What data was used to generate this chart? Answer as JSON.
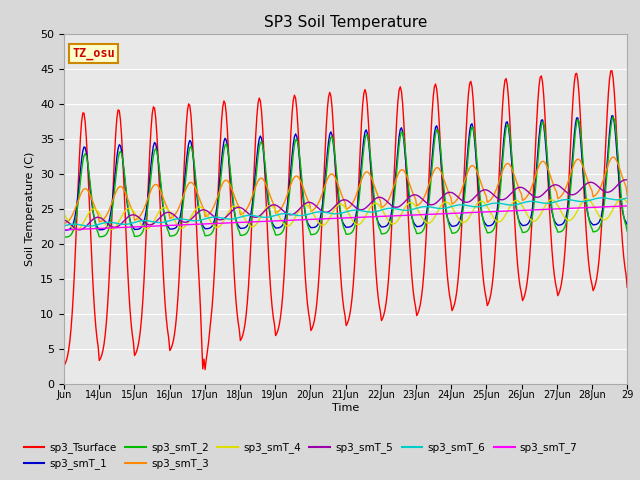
{
  "title": "SP3 Soil Temperature",
  "ylabel": "Soil Temperature (C)",
  "xlabel": "Time",
  "tz_label": "TZ_osu",
  "ylim": [
    0,
    50
  ],
  "fig_bg": "#d8d8d8",
  "plot_bg": "#e8e8e8",
  "series_colors": {
    "sp3_Tsurface": "#ff0000",
    "sp3_smT_1": "#0000cc",
    "sp3_smT_2": "#00bb00",
    "sp3_smT_3": "#ff8800",
    "sp3_smT_4": "#dddd00",
    "sp3_smT_5": "#9900aa",
    "sp3_smT_6": "#00cccc",
    "sp3_smT_7": "#ff00ff"
  },
  "x_tick_labels": [
    "Jun",
    "14Jun",
    "15Jun",
    "16Jun",
    "17Jun",
    "18Jun",
    "19Jun",
    "20Jun",
    "21Jun",
    "22Jun",
    "23Jun",
    "24Jun",
    "25Jun",
    "26Jun",
    "27Jun",
    "28Jun",
    "29"
  ],
  "days": 16,
  "n_points": 480
}
